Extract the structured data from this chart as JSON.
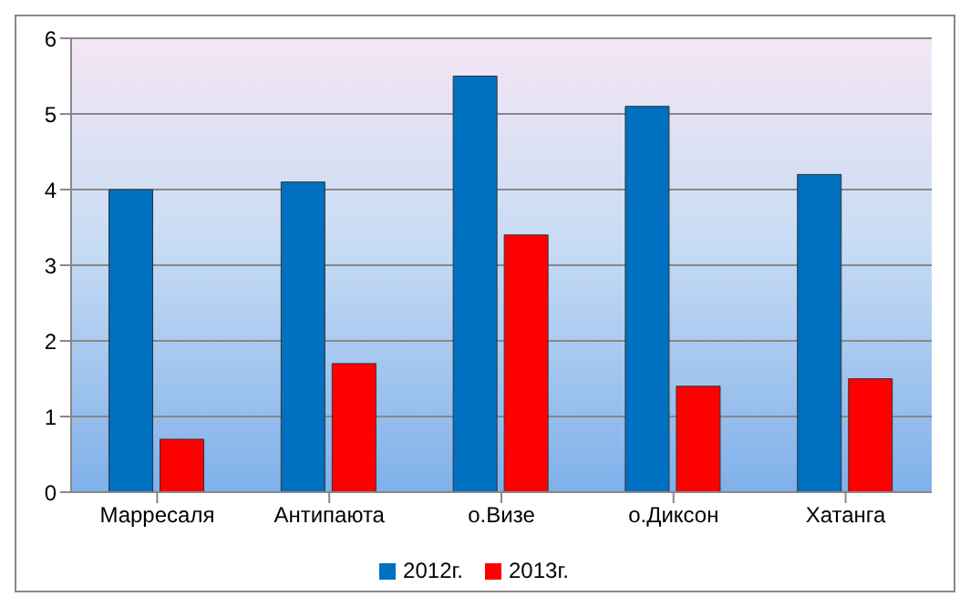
{
  "chart_data": {
    "type": "bar",
    "categories": [
      "Марресаля",
      "Антипаюта",
      "о.Визе",
      "о.Диксон",
      "Хатанга"
    ],
    "series": [
      {
        "name": "2012г.",
        "color": "#0070c0",
        "values": [
          4.0,
          4.1,
          5.5,
          5.1,
          4.2
        ]
      },
      {
        "name": "2013г.",
        "color": "#ff0000",
        "values": [
          0.7,
          1.7,
          3.4,
          1.4,
          1.5
        ]
      }
    ],
    "ylim": [
      0,
      6
    ],
    "yticks": [
      0,
      1,
      2,
      3,
      4,
      5,
      6
    ],
    "grid": "y",
    "legend": "bottom"
  }
}
